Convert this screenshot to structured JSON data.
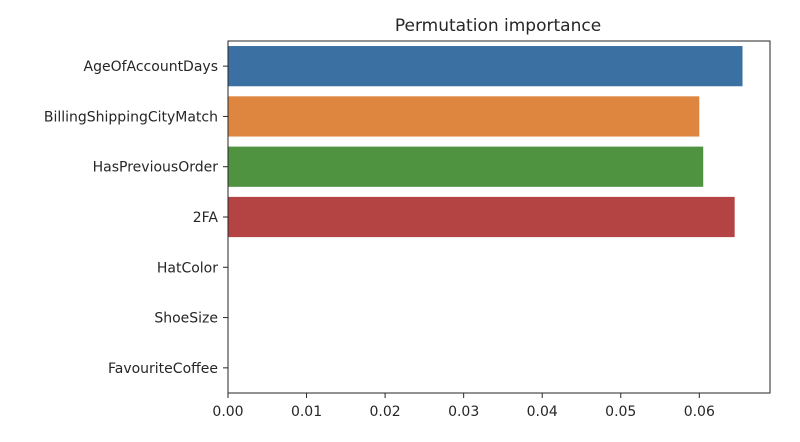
{
  "chart_data": {
    "type": "bar",
    "orientation": "horizontal",
    "title": "Permutation importance",
    "xlabel": "",
    "ylabel": "",
    "categories": [
      "AgeOfAccountDays",
      "BillingShippingCityMatch",
      "HasPreviousOrder",
      "2FA",
      "HatColor",
      "ShoeSize",
      "FavouriteCoffee"
    ],
    "values": [
      0.0655,
      0.06,
      0.0605,
      0.0645,
      0.0,
      0.0,
      0.0
    ],
    "colors": [
      "#3a70a2",
      "#de8540",
      "#4f923f",
      "#b44344",
      "#c0c0c0",
      "#c0c0c0",
      "#c0c0c0"
    ],
    "xlim": [
      0.0,
      0.069
    ],
    "xticks": [
      0.0,
      0.01,
      0.02,
      0.03,
      0.04,
      0.05,
      0.06
    ],
    "xtick_labels": [
      "0.00",
      "0.01",
      "0.02",
      "0.03",
      "0.04",
      "0.05",
      "0.06"
    ],
    "grid": false,
    "legend": "none"
  }
}
